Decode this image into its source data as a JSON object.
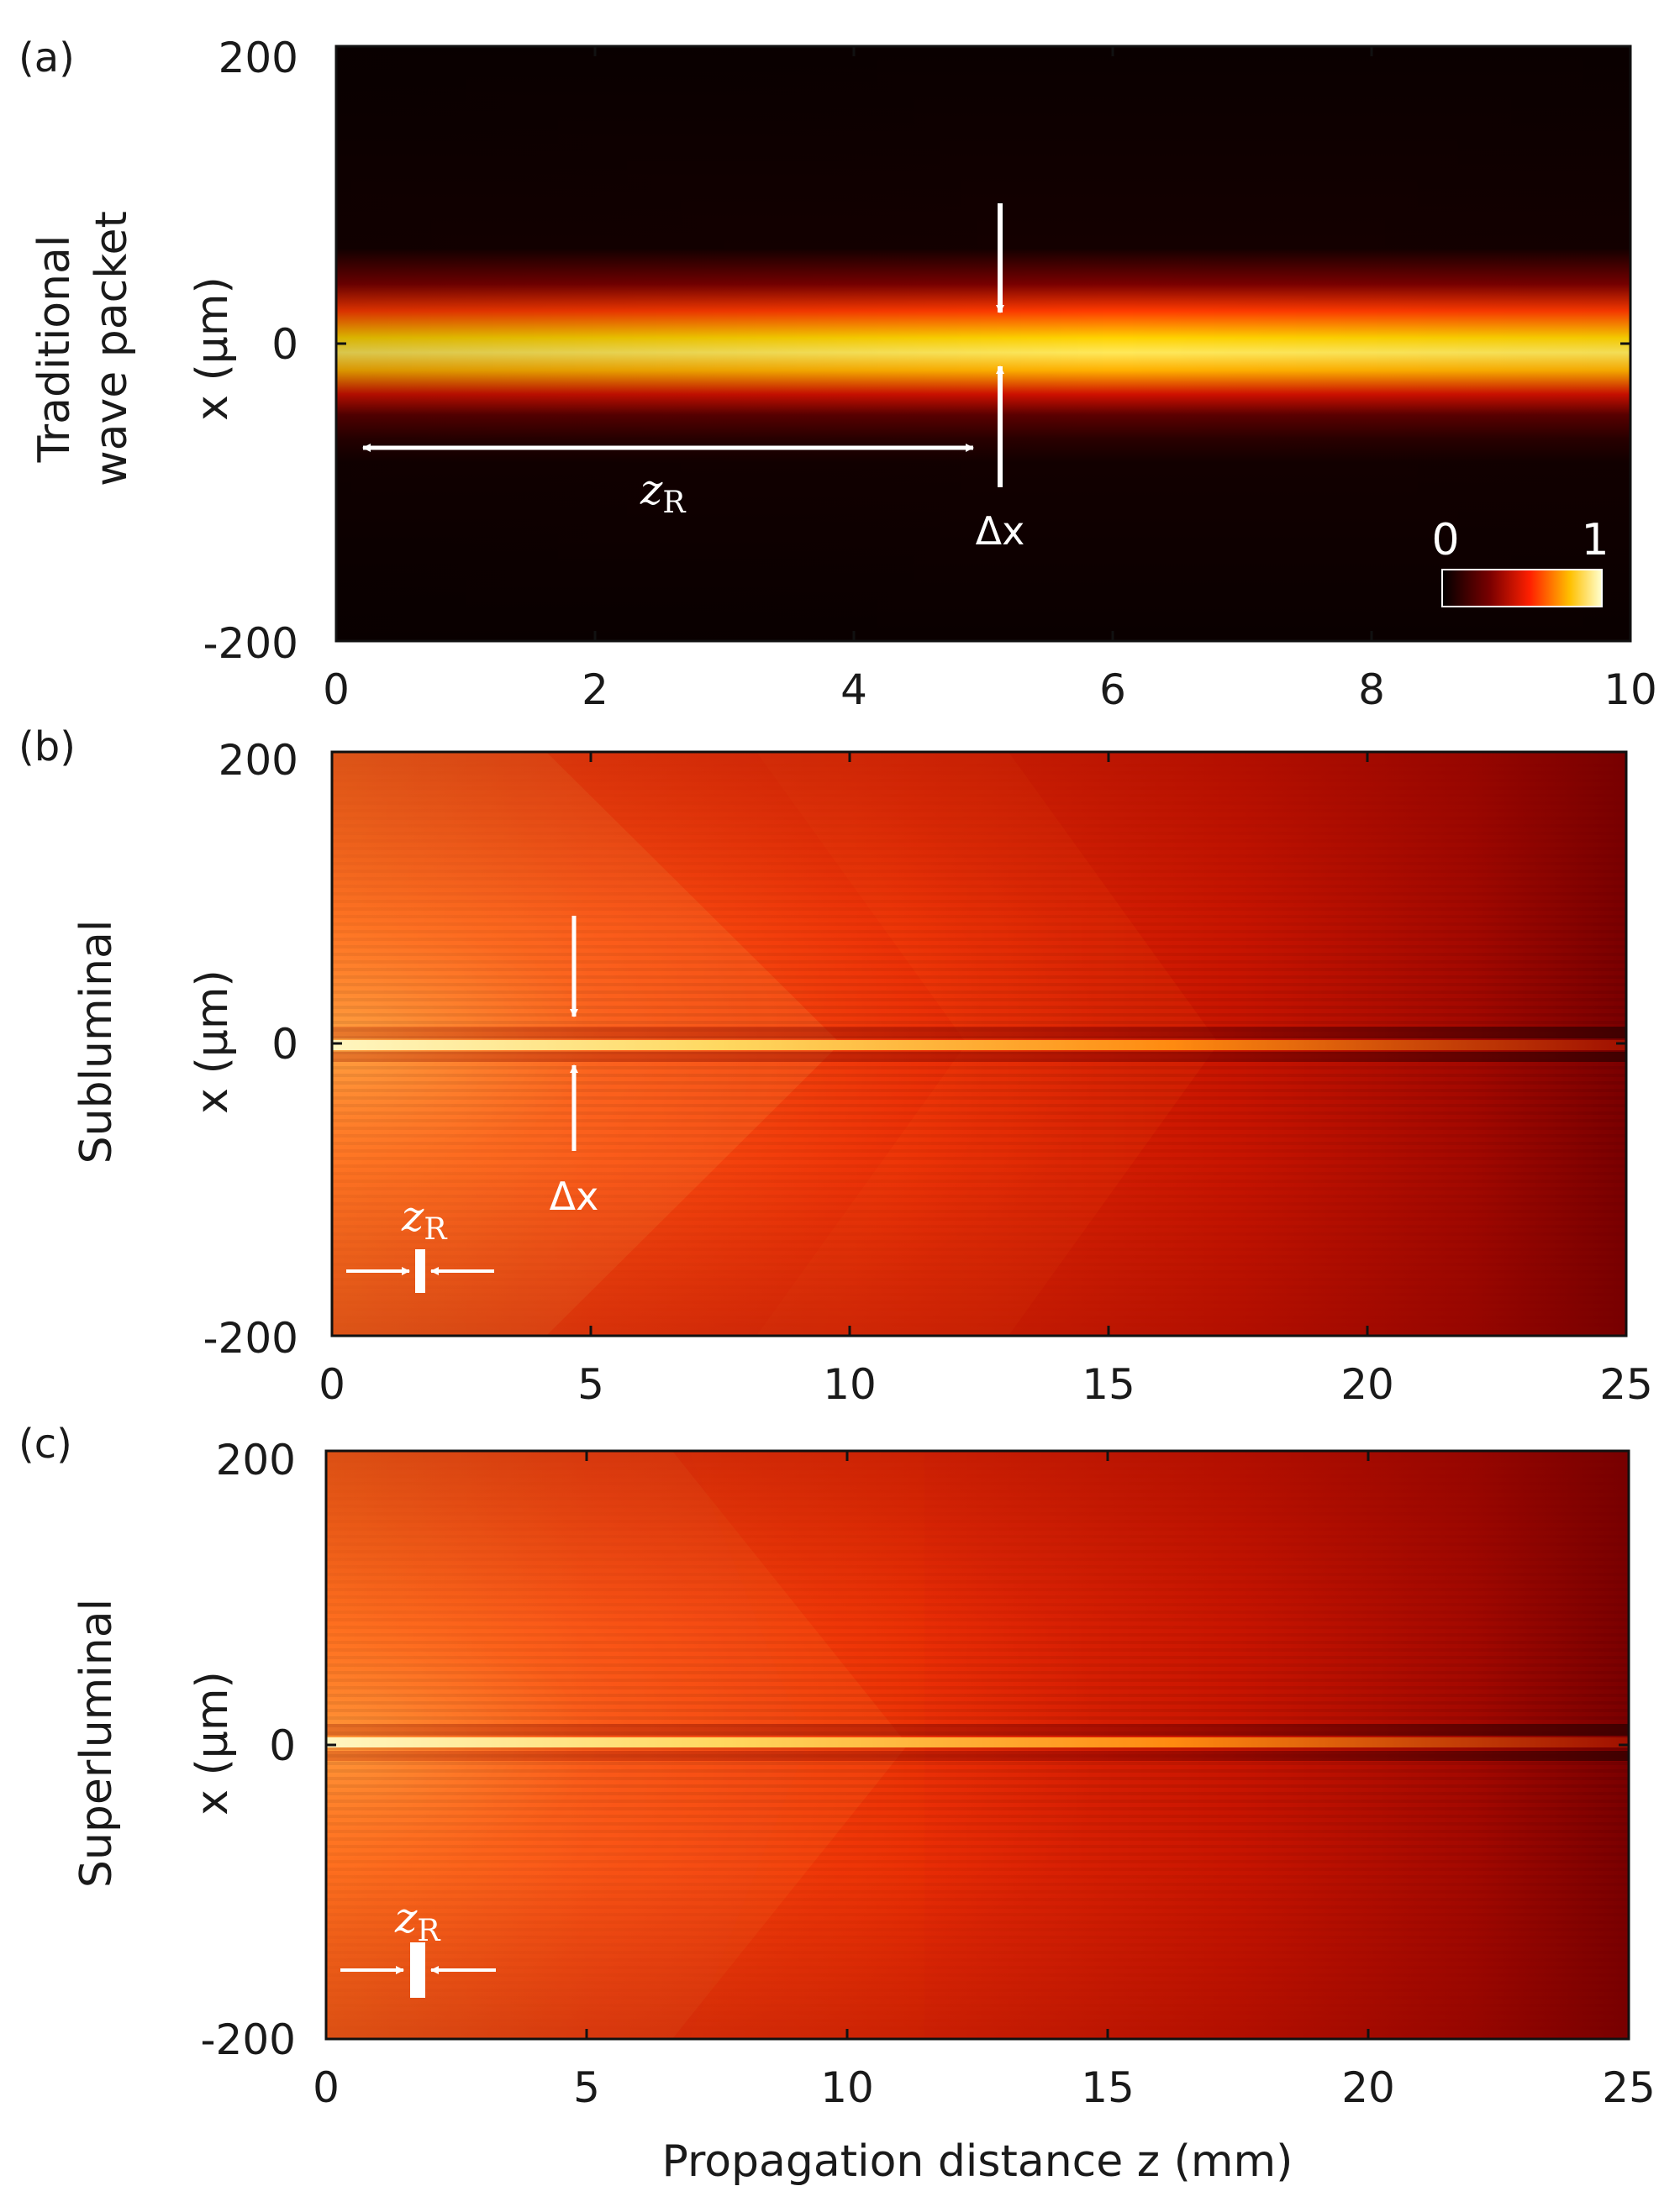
{
  "figure": {
    "x_axis_title": "Propagation distance z (mm)",
    "y_axis_title": "x (μm)"
  },
  "chart_data": [
    {
      "type": "heatmap",
      "panel": "(a)",
      "row_label_lines": [
        "Traditional",
        "wave packet"
      ],
      "ylabel": "x (μm)",
      "xlabel": "",
      "xlim": [
        0,
        10
      ],
      "ylim": [
        -200,
        200
      ],
      "xticks": [
        0,
        2,
        4,
        6,
        8,
        10
      ],
      "yticks": [
        -200,
        0,
        200
      ],
      "beam_center_x_um": 0,
      "beam_halfwidth_um": 25,
      "annotations": {
        "rayleigh_label": "z",
        "rayleigh_sub": "R",
        "rayleigh_extent_mm": [
          0.2,
          5.4
        ],
        "width_label": "Δx",
        "width_marker_z_mm": 5.6
      },
      "colorbar": {
        "min_label": "0",
        "max_label": "1"
      },
      "colors": [
        "#000000",
        "#8b0000",
        "#ff2a00",
        "#ffd200",
        "#ffffe0"
      ]
    },
    {
      "type": "heatmap",
      "panel": "(b)",
      "row_label_lines": [
        "Subluminal"
      ],
      "ylabel": "x (μm)",
      "xlabel": "",
      "xlim": [
        0,
        25
      ],
      "ylim": [
        -200,
        200
      ],
      "xticks": [
        0,
        5,
        10,
        15,
        20,
        25
      ],
      "yticks": [
        -200,
        0,
        200
      ],
      "beam_center_x_um": 0,
      "annotations": {
        "rayleigh_label": "z",
        "rayleigh_sub": "R",
        "rayleigh_marker_z_mm": 1.7,
        "width_label": "Δx",
        "width_marker_z_mm": 4.7
      }
    },
    {
      "type": "heatmap",
      "panel": "(c)",
      "row_label_lines": [
        "Superluminal"
      ],
      "ylabel": "x (μm)",
      "xlabel": "Propagation distance z (mm)",
      "xlim": [
        0,
        25
      ],
      "ylim": [
        -200,
        200
      ],
      "xticks": [
        0,
        5,
        10,
        15,
        20,
        25
      ],
      "yticks": [
        -200,
        0,
        200
      ],
      "beam_center_x_um": 0,
      "annotations": {
        "rayleigh_label": "z",
        "rayleigh_sub": "R",
        "rayleigh_marker_z_mm": 1.8
      }
    }
  ]
}
